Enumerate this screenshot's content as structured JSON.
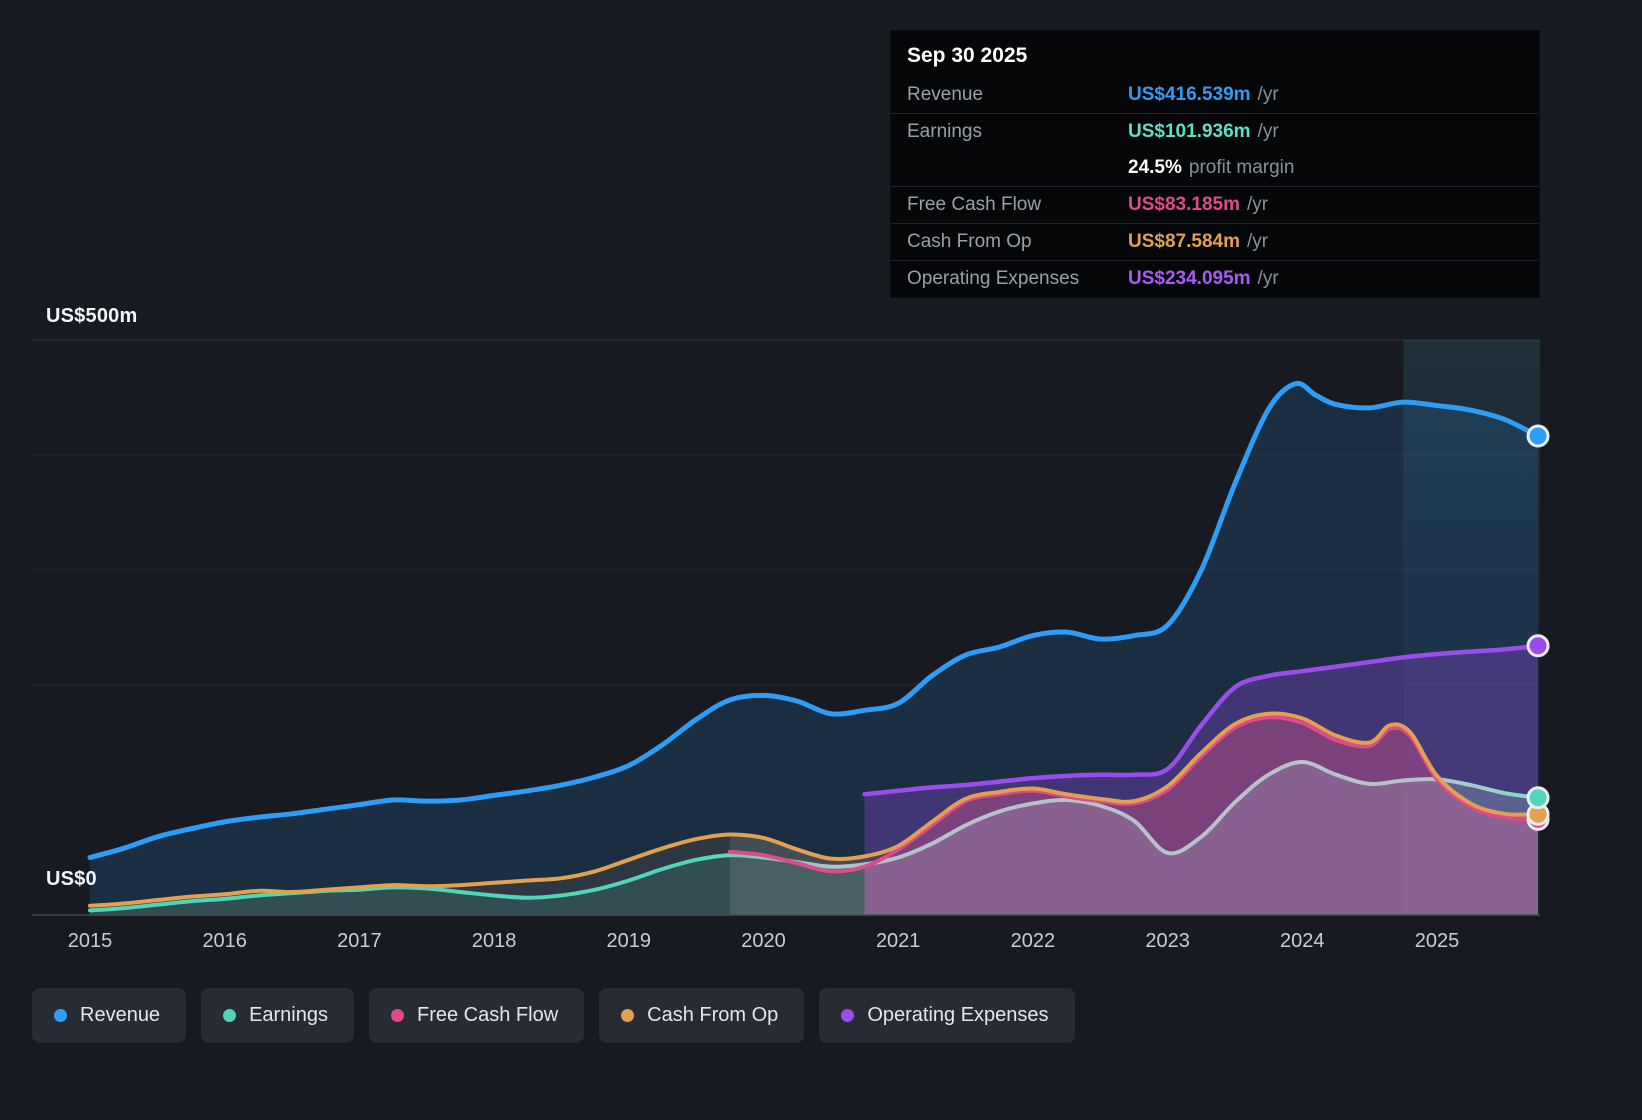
{
  "tooltip": {
    "date": "Sep 30 2025",
    "rows": [
      {
        "label": "Revenue",
        "value": "US$416.539m",
        "suffix": "/yr",
        "color": "#2e9df5",
        "divider": false
      },
      {
        "label": "Earnings",
        "value": "US$101.936m",
        "suffix": "/yr",
        "color": "#5fdfc5",
        "divider": true
      },
      {
        "label": "",
        "value": "24.5%",
        "suffix": "profit margin",
        "color": "#ffffff",
        "divider": false
      },
      {
        "label": "Free Cash Flow",
        "value": "US$83.185m",
        "suffix": "/yr",
        "color": "#de4a8b",
        "divider": true
      },
      {
        "label": "Cash From Op",
        "value": "US$87.584m",
        "suffix": "/yr",
        "color": "#e2a14e",
        "divider": true
      },
      {
        "label": "Operating Expenses",
        "value": "US$234.095m",
        "suffix": "/yr",
        "color": "#a85cf7",
        "divider": true
      }
    ]
  },
  "axis": {
    "y_top": "US$500m",
    "y_bottom": "US$0",
    "years": [
      "2015",
      "2016",
      "2017",
      "2018",
      "2019",
      "2020",
      "2021",
      "2022",
      "2023",
      "2024",
      "2025"
    ]
  },
  "chart_data": {
    "type": "line",
    "title": "Financial history: revenue, earnings, cash flow and expenses (US$ millions)",
    "unit": "US$m",
    "ylim": [
      0,
      500
    ],
    "xlim": [
      2014.6,
      2025.8
    ],
    "grid": "horizontal, labeled at US$0 and US$500m",
    "legend_position": "bottom",
    "highlight_band_start": 2024.75,
    "series": [
      {
        "name": "Revenue",
        "color": "#2e9df5",
        "points": [
          [
            2015,
            50
          ],
          [
            2015.25,
            58
          ],
          [
            2015.5,
            68
          ],
          [
            2015.75,
            75
          ],
          [
            2016,
            81
          ],
          [
            2016.25,
            85
          ],
          [
            2016.5,
            88
          ],
          [
            2016.75,
            92
          ],
          [
            2017,
            96
          ],
          [
            2017.25,
            100
          ],
          [
            2017.5,
            99
          ],
          [
            2017.75,
            100
          ],
          [
            2018,
            104
          ],
          [
            2018.25,
            108
          ],
          [
            2018.5,
            113
          ],
          [
            2018.75,
            120
          ],
          [
            2019,
            130
          ],
          [
            2019.25,
            148
          ],
          [
            2019.5,
            170
          ],
          [
            2019.75,
            187
          ],
          [
            2020,
            191
          ],
          [
            2020.25,
            186
          ],
          [
            2020.5,
            175
          ],
          [
            2020.75,
            178
          ],
          [
            2021,
            184
          ],
          [
            2021.25,
            208
          ],
          [
            2021.5,
            226
          ],
          [
            2021.75,
            233
          ],
          [
            2022,
            243
          ],
          [
            2022.25,
            246
          ],
          [
            2022.5,
            240
          ],
          [
            2022.75,
            243
          ],
          [
            2023,
            252
          ],
          [
            2023.25,
            300
          ],
          [
            2023.5,
            375
          ],
          [
            2023.75,
            440
          ],
          [
            2023.95,
            462
          ],
          [
            2024.1,
            452
          ],
          [
            2024.25,
            444
          ],
          [
            2024.5,
            441
          ],
          [
            2024.75,
            446
          ],
          [
            2025,
            443
          ],
          [
            2025.25,
            439
          ],
          [
            2025.5,
            431
          ],
          [
            2025.75,
            416.539
          ]
        ]
      },
      {
        "name": "Earnings",
        "color": "#4fd6ba",
        "points": [
          [
            2015,
            4
          ],
          [
            2015.25,
            6
          ],
          [
            2015.5,
            9
          ],
          [
            2015.75,
            12
          ],
          [
            2016,
            14
          ],
          [
            2016.25,
            17
          ],
          [
            2016.5,
            19
          ],
          [
            2016.75,
            21
          ],
          [
            2017,
            22
          ],
          [
            2017.25,
            24
          ],
          [
            2017.5,
            23
          ],
          [
            2017.75,
            20
          ],
          [
            2018,
            17
          ],
          [
            2018.25,
            15
          ],
          [
            2018.5,
            17
          ],
          [
            2018.75,
            22
          ],
          [
            2019,
            30
          ],
          [
            2019.25,
            40
          ],
          [
            2019.5,
            48
          ],
          [
            2019.75,
            52
          ],
          [
            2020,
            50
          ],
          [
            2020.25,
            46
          ],
          [
            2020.5,
            42
          ],
          [
            2020.75,
            44
          ],
          [
            2021,
            50
          ],
          [
            2021.25,
            62
          ],
          [
            2021.5,
            78
          ],
          [
            2021.75,
            90
          ],
          [
            2022,
            97
          ],
          [
            2022.25,
            100
          ],
          [
            2022.5,
            95
          ],
          [
            2022.75,
            82
          ],
          [
            2023,
            54
          ],
          [
            2023.25,
            68
          ],
          [
            2023.5,
            98
          ],
          [
            2023.75,
            122
          ],
          [
            2024,
            133
          ],
          [
            2024.25,
            122
          ],
          [
            2024.5,
            114
          ],
          [
            2024.75,
            117
          ],
          [
            2025,
            118
          ],
          [
            2025.25,
            113
          ],
          [
            2025.5,
            106
          ],
          [
            2025.75,
            101.936
          ]
        ]
      },
      {
        "name": "Free Cash Flow",
        "color": "#de4a8b",
        "points": [
          [
            2019.75,
            55
          ],
          [
            2020,
            52
          ],
          [
            2020.25,
            45
          ],
          [
            2020.5,
            38
          ],
          [
            2020.75,
            42
          ],
          [
            2021,
            57
          ],
          [
            2021.25,
            78
          ],
          [
            2021.5,
            99
          ],
          [
            2021.75,
            105
          ],
          [
            2022,
            108
          ],
          [
            2022.25,
            103
          ],
          [
            2022.5,
            99
          ],
          [
            2022.75,
            97
          ],
          [
            2023,
            109
          ],
          [
            2023.25,
            138
          ],
          [
            2023.5,
            163
          ],
          [
            2023.75,
            172
          ],
          [
            2024,
            167
          ],
          [
            2024.25,
            152
          ],
          [
            2024.5,
            147
          ],
          [
            2024.65,
            162
          ],
          [
            2024.8,
            156
          ],
          [
            2025,
            118
          ],
          [
            2025.25,
            94
          ],
          [
            2025.5,
            85
          ],
          [
            2025.75,
            83.185
          ]
        ]
      },
      {
        "name": "Cash From Op",
        "color": "#e2a14e",
        "points": [
          [
            2015,
            8
          ],
          [
            2015.25,
            10
          ],
          [
            2015.5,
            13
          ],
          [
            2015.75,
            16
          ],
          [
            2016,
            18
          ],
          [
            2016.25,
            21
          ],
          [
            2016.5,
            20
          ],
          [
            2016.75,
            22
          ],
          [
            2017,
            24
          ],
          [
            2017.25,
            26
          ],
          [
            2017.5,
            25
          ],
          [
            2017.75,
            26
          ],
          [
            2018,
            28
          ],
          [
            2018.25,
            30
          ],
          [
            2018.5,
            32
          ],
          [
            2018.75,
            38
          ],
          [
            2019,
            48
          ],
          [
            2019.25,
            58
          ],
          [
            2019.5,
            66
          ],
          [
            2019.75,
            70
          ],
          [
            2020,
            67
          ],
          [
            2020.25,
            57
          ],
          [
            2020.5,
            49
          ],
          [
            2020.75,
            51
          ],
          [
            2021,
            60
          ],
          [
            2021.25,
            81
          ],
          [
            2021.5,
            101
          ],
          [
            2021.75,
            107
          ],
          [
            2022,
            110
          ],
          [
            2022.25,
            105
          ],
          [
            2022.5,
            101
          ],
          [
            2022.75,
            99
          ],
          [
            2023,
            112
          ],
          [
            2023.25,
            141
          ],
          [
            2023.5,
            166
          ],
          [
            2023.75,
            175
          ],
          [
            2024,
            171
          ],
          [
            2024.25,
            156
          ],
          [
            2024.5,
            150
          ],
          [
            2024.65,
            165
          ],
          [
            2024.8,
            159
          ],
          [
            2025,
            121
          ],
          [
            2025.25,
            97
          ],
          [
            2025.5,
            88
          ],
          [
            2025.75,
            87.584
          ]
        ]
      },
      {
        "name": "Operating Expenses",
        "color": "#9b4deb",
        "points": [
          [
            2020.75,
            105
          ],
          [
            2021,
            108
          ],
          [
            2021.25,
            111
          ],
          [
            2021.5,
            113
          ],
          [
            2021.75,
            116
          ],
          [
            2022,
            119
          ],
          [
            2022.25,
            121
          ],
          [
            2022.5,
            122
          ],
          [
            2022.75,
            122
          ],
          [
            2023,
            127
          ],
          [
            2023.25,
            165
          ],
          [
            2023.5,
            198
          ],
          [
            2023.75,
            208
          ],
          [
            2024,
            212
          ],
          [
            2024.25,
            216
          ],
          [
            2024.5,
            220
          ],
          [
            2024.75,
            224
          ],
          [
            2025,
            227
          ],
          [
            2025.25,
            229
          ],
          [
            2025.5,
            231
          ],
          [
            2025.75,
            234.095
          ]
        ]
      }
    ]
  }
}
